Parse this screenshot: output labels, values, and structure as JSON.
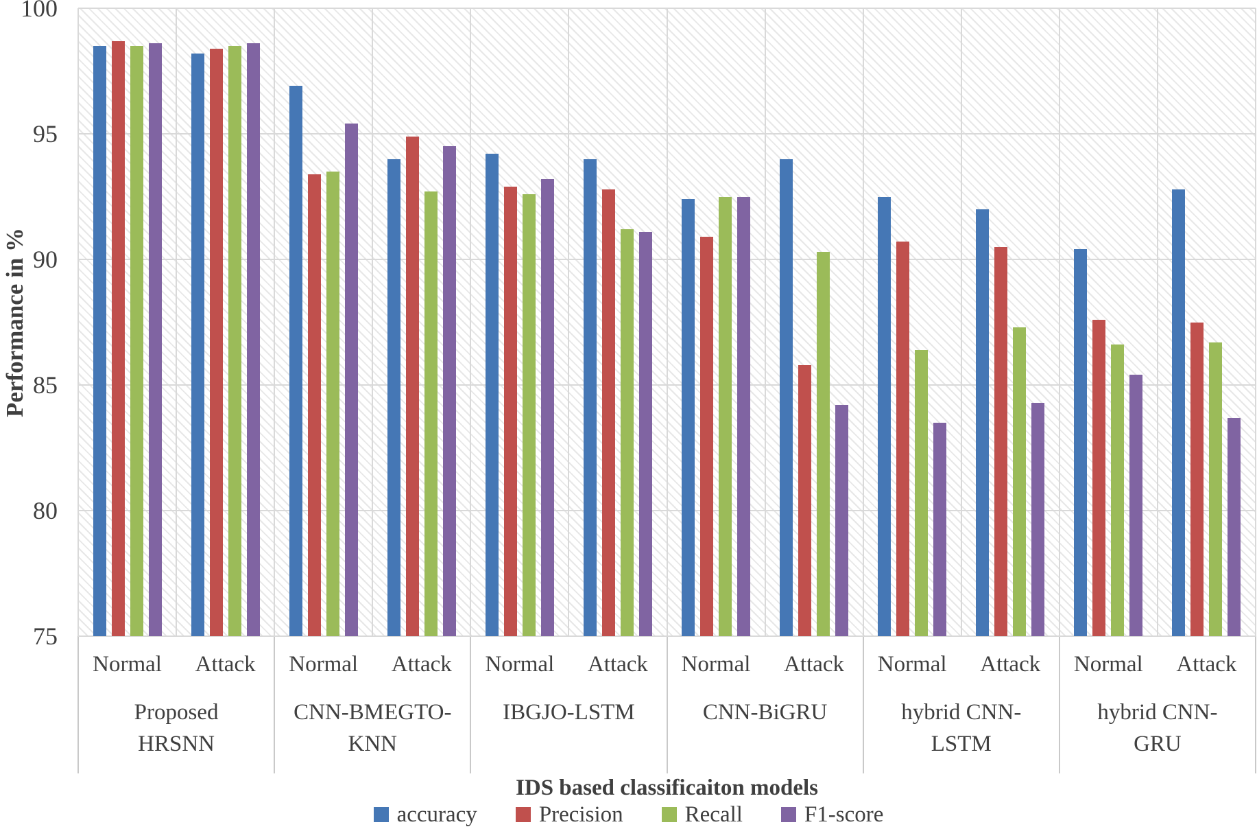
{
  "chart_data": {
    "type": "bar",
    "title": "",
    "xlabel": "IDS based classificaiton models",
    "ylabel": "Performance in %",
    "ylim": [
      75,
      100
    ],
    "y_ticks": [
      100,
      95,
      90,
      85,
      80,
      75
    ],
    "grid": true,
    "legend_position": "bottom",
    "plot_background": "diagonal-hatch",
    "gridline_color": "#d9d9d9",
    "series": [
      {
        "name": "accuracy",
        "color": "#4577b5"
      },
      {
        "name": "Precision",
        "color": "#c0504d"
      },
      {
        "name": "Recall",
        "color": "#9bbb59"
      },
      {
        "name": "F1-score",
        "color": "#8064a2"
      }
    ],
    "groups": [
      {
        "label": "Proposed\nHRSNN",
        "categories": [
          {
            "label": "Normal",
            "values": [
              98.5,
              98.7,
              98.5,
              98.6
            ]
          },
          {
            "label": "Attack",
            "values": [
              98.2,
              98.4,
              98.5,
              98.6
            ]
          }
        ]
      },
      {
        "label": "CNN-BMEGTO-\nKNN",
        "categories": [
          {
            "label": "Normal",
            "values": [
              96.9,
              93.4,
              93.5,
              95.4
            ]
          },
          {
            "label": "Attack",
            "values": [
              94.0,
              94.9,
              92.7,
              94.5
            ]
          }
        ]
      },
      {
        "label": "IBGJO-LSTM",
        "categories": [
          {
            "label": "Normal",
            "values": [
              94.2,
              92.9,
              92.6,
              93.2
            ]
          },
          {
            "label": "Attack",
            "values": [
              94.0,
              92.8,
              91.2,
              91.1
            ]
          }
        ]
      },
      {
        "label": "CNN-BiGRU",
        "categories": [
          {
            "label": "Normal",
            "values": [
              92.4,
              90.9,
              92.5,
              92.5
            ]
          },
          {
            "label": "Attack",
            "values": [
              94.0,
              85.8,
              90.3,
              84.2
            ]
          }
        ]
      },
      {
        "label": "hybrid CNN-\nLSTM",
        "categories": [
          {
            "label": "Normal",
            "values": [
              92.5,
              90.7,
              86.4,
              83.5
            ]
          },
          {
            "label": "Attack",
            "values": [
              92.0,
              90.5,
              87.3,
              84.3
            ]
          }
        ]
      },
      {
        "label": "hybrid CNN-\nGRU",
        "categories": [
          {
            "label": "Normal",
            "values": [
              90.4,
              87.6,
              86.6,
              85.4
            ]
          },
          {
            "label": "Attack",
            "values": [
              92.8,
              87.5,
              86.7,
              83.7
            ]
          }
        ]
      }
    ]
  }
}
